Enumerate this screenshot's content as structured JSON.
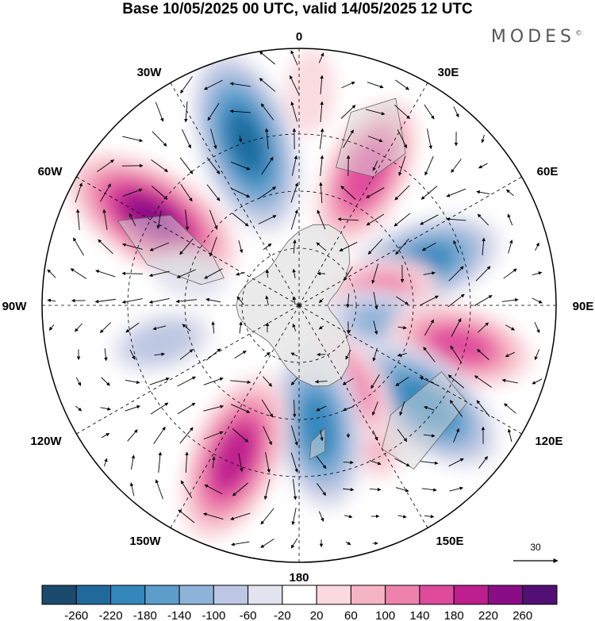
{
  "title": "Base 10/05/2025 00 UTC, valid 14/05/2025 12 UTC",
  "brand": "MODES",
  "brand_mark": "©",
  "longitude_labels": {
    "lon_0": "0",
    "lon_30e": "30E",
    "lon_60e": "60E",
    "lon_90e": "90E",
    "lon_120e": "120E",
    "lon_150e": "150E",
    "lon_180": "180",
    "lon_150w": "150W",
    "lon_120w": "120W",
    "lon_90w": "90W",
    "lon_60w": "60W",
    "lon_30w": "30W"
  },
  "reference_vector": "30",
  "colorbar": {
    "tick_labels": [
      "-260",
      "-220",
      "-180",
      "-140",
      "-100",
      "-60",
      "-20",
      "20",
      "60",
      "100",
      "140",
      "180",
      "220",
      "260"
    ],
    "colors": [
      "#1b4b6c",
      "#1f6a9a",
      "#3387bd",
      "#5c9dc9",
      "#8db3d8",
      "#bdc6e2",
      "#e3e3ef",
      "#ffffff",
      "#fadadf",
      "#f5b4c4",
      "#ee82ac",
      "#de4b9b",
      "#bd1f8e",
      "#8b0c87",
      "#521075"
    ]
  },
  "anomaly_centers": [
    {
      "lon_deg": -18,
      "colat_deg": 60,
      "value": -250
    },
    {
      "lon_deg": -59,
      "colat_deg": 60,
      "value": 250
    },
    {
      "lon_deg": 27,
      "colat_deg": 52,
      "value": 190
    },
    {
      "lon_deg": 71,
      "colat_deg": 46,
      "value": -200
    },
    {
      "lon_deg": 80,
      "colat_deg": 28,
      "value": 120
    },
    {
      "lon_deg": 102,
      "colat_deg": 30,
      "value": -120
    },
    {
      "lon_deg": 104,
      "colat_deg": 58,
      "value": 170
    },
    {
      "lon_deg": 128,
      "colat_deg": 56,
      "value": -220
    },
    {
      "lon_deg": 152,
      "colat_deg": 50,
      "value": 90
    },
    {
      "lon_deg": 148,
      "colat_deg": 33,
      "value": 130
    },
    {
      "lon_deg": 171,
      "colat_deg": 43,
      "value": -210
    },
    {
      "lon_deg": -157,
      "colat_deg": 58,
      "value": 220
    },
    {
      "lon_deg": -105,
      "colat_deg": 50,
      "value": -90
    },
    {
      "lon_deg": -75,
      "colat_deg": 40,
      "value": -40
    },
    {
      "lon_deg": 3,
      "colat_deg": 75,
      "value": 60
    }
  ]
}
